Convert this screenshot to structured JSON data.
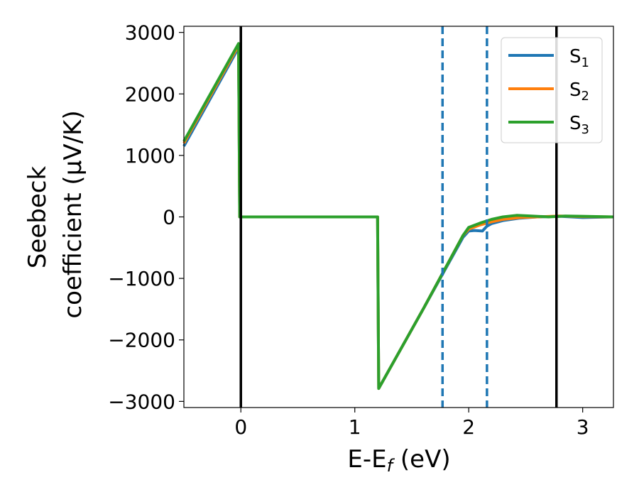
{
  "chart_data": {
    "type": "line",
    "xlabel": "E-E",
    "xlabel_sub": "f",
    "xlabel_unit": " (eV)",
    "ylabel_line1": "Seebeck",
    "ylabel_line2": "coefficient  (μV/K)",
    "xlim": [
      -0.5,
      3.27
    ],
    "ylim": [
      -3100,
      3100
    ],
    "xticks": [
      0,
      1,
      2,
      3
    ],
    "xtick_labels": [
      "0",
      "1",
      "2",
      "3"
    ],
    "yticks": [
      -3000,
      -2000,
      -1000,
      0,
      1000,
      2000,
      3000
    ],
    "ytick_labels": [
      "−3000",
      "−2000",
      "−1000",
      "0",
      "1000",
      "2000",
      "3000"
    ],
    "grid": false,
    "legend_position": "top-right",
    "series": [
      {
        "name": "S",
        "name_sub": "1",
        "color": "#1f77b4",
        "x": [
          -0.5,
          -0.02,
          -0.01,
          1.2,
          1.21,
          1.6,
          1.95,
          2.0,
          2.05,
          2.12,
          2.16,
          2.2,
          2.3,
          2.45,
          2.6,
          2.8,
          3.0,
          3.27
        ],
        "y": [
          1150,
          2750,
          0,
          0,
          -2790,
          -1500,
          -330,
          -230,
          -220,
          -230,
          -150,
          -110,
          -60,
          -20,
          0,
          10,
          -10,
          0
        ]
      },
      {
        "name": "S",
        "name_sub": "2",
        "color": "#ff7f0e",
        "x": [
          -0.5,
          -0.02,
          -0.01,
          1.2,
          1.21,
          1.6,
          1.95,
          2.0,
          2.1,
          2.2,
          2.3,
          2.45,
          2.6,
          2.8,
          3.0,
          3.27
        ],
        "y": [
          1200,
          2790,
          0,
          0,
          -2790,
          -1500,
          -300,
          -200,
          -130,
          -80,
          -40,
          -10,
          0,
          15,
          5,
          0
        ]
      },
      {
        "name": "S",
        "name_sub": "3",
        "color": "#2ca02c",
        "x": [
          -0.5,
          -0.02,
          -0.01,
          1.2,
          1.21,
          1.6,
          1.95,
          2.0,
          2.1,
          2.2,
          2.3,
          2.42,
          2.55,
          2.7,
          2.85,
          3.0,
          3.27
        ],
        "y": [
          1230,
          2820,
          0,
          0,
          -2790,
          -1500,
          -300,
          -170,
          -100,
          -40,
          0,
          25,
          15,
          0,
          15,
          10,
          0
        ]
      }
    ],
    "vertical_lines": [
      {
        "x": 0,
        "style": "solid",
        "color": "#000000"
      },
      {
        "x": 1.77,
        "style": "dashed",
        "color": "#1f77b4"
      },
      {
        "x": 2.16,
        "style": "dashed",
        "color": "#1f77b4"
      },
      {
        "x": 2.77,
        "style": "solid",
        "color": "#000000"
      }
    ]
  }
}
